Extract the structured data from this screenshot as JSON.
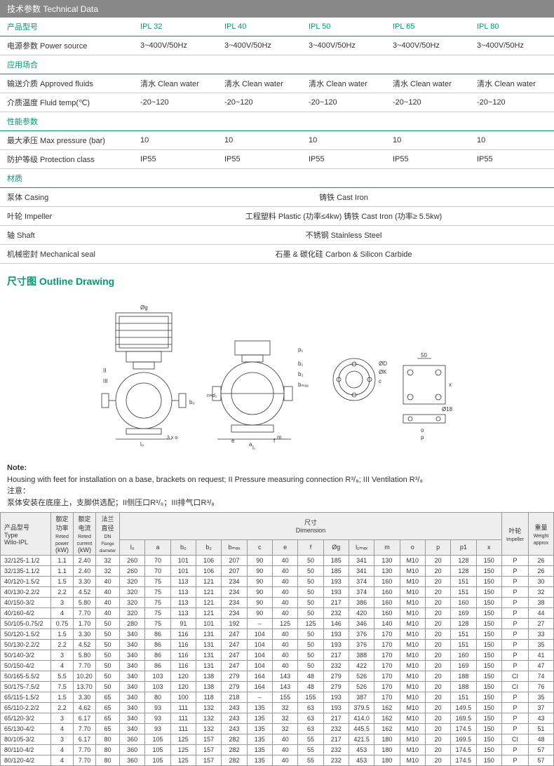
{
  "header": {
    "title": "技术参数 Technical Data"
  },
  "tech_sections": {
    "product_row": {
      "label": "产品型号",
      "cols": [
        "IPL 32",
        "IPL 40",
        "IPL 50",
        "IPL 65",
        "IPL 80"
      ]
    },
    "power": {
      "label": "电源参数 Power source",
      "vals": [
        "3~400V/50Hz",
        "3~400V/50Hz",
        "3~400V/50Hz",
        "3~400V/50Hz",
        "3~400V/50Hz"
      ]
    },
    "app_section": "应用场合",
    "fluids": {
      "label": "输送介质 Approved fluids",
      "vals": [
        "清水 Clean water",
        "清水 Clean water",
        "清水 Clean water",
        "清水 Clean water",
        "清水 Clean water"
      ]
    },
    "temp": {
      "label": "介质温度 Fluid temp(℃)",
      "vals": [
        "-20~120",
        "-20~120",
        "-20~120",
        "-20~120",
        "-20~120"
      ]
    },
    "perf_section": "性能参数",
    "pressure": {
      "label": "最大承压 Max pressure (bar)",
      "vals": [
        "10",
        "10",
        "10",
        "10",
        "10"
      ]
    },
    "protection": {
      "label": "防护等级 Protection class",
      "vals": [
        "IP55",
        "IP55",
        "IP55",
        "IP55",
        "IP55"
      ]
    },
    "material_section": "材质",
    "casing": {
      "label": "泵体 Casing",
      "center": "铸铁 Cast Iron"
    },
    "impeller": {
      "label": "叶轮 Impeller",
      "center": "工程塑料 Plastic (功率≤4kw) 铸铁 Cast Iron (功率≥ 5.5kw)"
    },
    "shaft": {
      "label": "轴 Shaft",
      "center": "不锈钢 Stainless Steel"
    },
    "seal": {
      "label": "机械密封 Mechanical seal",
      "center": "石墨 & 碳化硅 Carbon & Silicon Carbide"
    }
  },
  "outline_title": "尺寸图 Outline Drawing",
  "drawing_labels": [
    "Øg",
    "II",
    "III",
    "l₀",
    "b₀",
    "l₁",
    "p₁",
    "b₁",
    "b₂",
    "bₘₐₓ",
    "n×d₁",
    "a",
    "e",
    "f",
    "m",
    "ØD",
    "ØK",
    "c",
    "50",
    "Ø18",
    "x",
    "o",
    "p",
    "3 x o"
  ],
  "note": {
    "title": "Note:",
    "en": "Housing with feet for installation on a base, brackets on request; II Pressure measuring connection R³/₈; III Ventilation R³/₈",
    "zh_label": "注意：",
    "zh": "泵体安装在底座上，支脚供选配；II侧压口R³/₈；III排气口R³/₈"
  },
  "dim_headers": {
    "type": {
      "l1": "产品型号",
      "l2": "Type",
      "l3": "Wilo-IPL"
    },
    "power": {
      "l1": "额定",
      "l2": "功率",
      "l3": "Reted power",
      "l4": "(kW)"
    },
    "current": {
      "l1": "额定",
      "l2": "电流",
      "l3": "Reted current",
      "l4": "(kW)"
    },
    "flange": {
      "l1": "法兰",
      "l2": "直径",
      "l3": "DN",
      "l4": "Flange diameter"
    },
    "dimension": {
      "l1": "尺寸",
      "l2": "Dimension"
    },
    "cols": [
      "l₀",
      "a",
      "b₀",
      "b₂",
      "bₘₐₓ",
      "c",
      "e",
      "f",
      "Øg",
      "l₁ₘₐₓ",
      "m",
      "o",
      "p",
      "p1",
      "x"
    ],
    "impeller": {
      "l1": "叶轮",
      "l2": "Impeller"
    },
    "weight": {
      "l1": "重量",
      "l2": "Weight approx"
    }
  },
  "dim_rows": [
    [
      "32/125-1.1/2",
      "1.1",
      "2.40",
      "32",
      "260",
      "70",
      "101",
      "106",
      "207",
      "90",
      "40",
      "50",
      "185",
      "341",
      "130",
      "M10",
      "20",
      "128",
      "150",
      "P",
      "26"
    ],
    [
      "32/135-1.1/2",
      "1.1",
      "2.40",
      "32",
      "260",
      "70",
      "101",
      "106",
      "207",
      "90",
      "40",
      "50",
      "185",
      "341",
      "130",
      "M10",
      "20",
      "128",
      "150",
      "P",
      "26"
    ],
    [
      "40/120-1.5/2",
      "1.5",
      "3.30",
      "40",
      "320",
      "75",
      "113",
      "121",
      "234",
      "90",
      "40",
      "50",
      "193",
      "374",
      "160",
      "M10",
      "20",
      "151",
      "150",
      "P",
      "30"
    ],
    [
      "40/130-2.2/2",
      "2.2",
      "4.52",
      "40",
      "320",
      "75",
      "113",
      "121",
      "234",
      "90",
      "40",
      "50",
      "193",
      "374",
      "160",
      "M10",
      "20",
      "151",
      "150",
      "P",
      "32"
    ],
    [
      "40/150-3/2",
      "3",
      "5.80",
      "40",
      "320",
      "75",
      "113",
      "121",
      "234",
      "90",
      "40",
      "50",
      "217",
      "386",
      "160",
      "M10",
      "20",
      "160",
      "150",
      "P",
      "38"
    ],
    [
      "40/160-4/2",
      "4",
      "7.70",
      "40",
      "320",
      "75",
      "113",
      "121",
      "234",
      "90",
      "40",
      "50",
      "232",
      "420",
      "160",
      "M10",
      "20",
      "169",
      "150",
      "P",
      "44"
    ],
    [
      "50/105-0.75/2",
      "0.75",
      "1.70",
      "50",
      "280",
      "75",
      "91",
      "101",
      "192",
      "–",
      "125",
      "125",
      "146",
      "346",
      "140",
      "M10",
      "20",
      "128",
      "150",
      "P",
      "27"
    ],
    [
      "50/120-1.5/2",
      "1.5",
      "3.30",
      "50",
      "340",
      "86",
      "116",
      "131",
      "247",
      "104",
      "40",
      "50",
      "193",
      "376",
      "170",
      "M10",
      "20",
      "151",
      "150",
      "P",
      "33"
    ],
    [
      "50/130-2.2/2",
      "2.2",
      "4.52",
      "50",
      "340",
      "86",
      "116",
      "131",
      "247",
      "104",
      "40",
      "50",
      "193",
      "376",
      "170",
      "M10",
      "20",
      "151",
      "150",
      "P",
      "35"
    ],
    [
      "50/140-3/2",
      "3",
      "5.80",
      "50",
      "340",
      "86",
      "116",
      "131",
      "247",
      "104",
      "40",
      "50",
      "217",
      "388",
      "170",
      "M10",
      "20",
      "160",
      "150",
      "P",
      "41"
    ],
    [
      "50/150-4/2",
      "4",
      "7.70",
      "50",
      "340",
      "86",
      "116",
      "131",
      "247",
      "104",
      "40",
      "50",
      "232",
      "422",
      "170",
      "M10",
      "20",
      "169",
      "150",
      "P",
      "47"
    ],
    [
      "50/165-5.5/2",
      "5.5",
      "10.20",
      "50",
      "340",
      "103",
      "120",
      "138",
      "279",
      "164",
      "143",
      "48",
      "279",
      "526",
      "170",
      "M10",
      "20",
      "188",
      "150",
      "CI",
      "74"
    ],
    [
      "50/175-7.5/2",
      "7.5",
      "13.70",
      "50",
      "340",
      "103",
      "120",
      "138",
      "279",
      "164",
      "143",
      "48",
      "279",
      "526",
      "170",
      "M10",
      "20",
      "188",
      "150",
      "CI",
      "76"
    ],
    [
      "65/115-1.5/2",
      "1.5",
      "3.30",
      "65",
      "340",
      "80",
      "100",
      "118",
      "218",
      "–",
      "155",
      "155",
      "193",
      "387",
      "170",
      "M10",
      "20",
      "151",
      "150",
      "P",
      "35"
    ],
    [
      "65/110-2.2/2",
      "2.2",
      "4.62",
      "65",
      "340",
      "93",
      "111",
      "132",
      "243",
      "135",
      "32",
      "63",
      "193",
      "379.5",
      "162",
      "M10",
      "20",
      "149.5",
      "150",
      "P",
      "37"
    ],
    [
      "65/120-3/2",
      "3",
      "6.17",
      "65",
      "340",
      "93",
      "111",
      "132",
      "243",
      "135",
      "32",
      "63",
      "217",
      "414.0",
      "162",
      "M10",
      "20",
      "169.5",
      "150",
      "P",
      "43"
    ],
    [
      "65/130-4/2",
      "4",
      "7.70",
      "65",
      "340",
      "93",
      "111",
      "132",
      "243",
      "135",
      "32",
      "63",
      "232",
      "445.5",
      "162",
      "M10",
      "20",
      "174.5",
      "150",
      "P",
      "51"
    ],
    [
      "80/105-3/2",
      "3",
      "6.17",
      "80",
      "360",
      "105",
      "125",
      "157",
      "282",
      "135",
      "40",
      "55",
      "217",
      "421.5",
      "180",
      "M10",
      "20",
      "169.5",
      "150",
      "CI",
      "48"
    ],
    [
      "80/110-4/2",
      "4",
      "7.70",
      "80",
      "360",
      "105",
      "125",
      "157",
      "282",
      "135",
      "40",
      "55",
      "232",
      "453",
      "180",
      "M10",
      "20",
      "174.5",
      "150",
      "P",
      "57"
    ],
    [
      "80/120-4/2",
      "4",
      "7.70",
      "80",
      "360",
      "105",
      "125",
      "157",
      "282",
      "135",
      "40",
      "55",
      "232",
      "453",
      "180",
      "M10",
      "20",
      "174.5",
      "150",
      "P",
      "57"
    ]
  ],
  "colors": {
    "accent": "#009b77",
    "header_bg": "#888888",
    "border": "#cccccc",
    "table_border": "#999999"
  }
}
